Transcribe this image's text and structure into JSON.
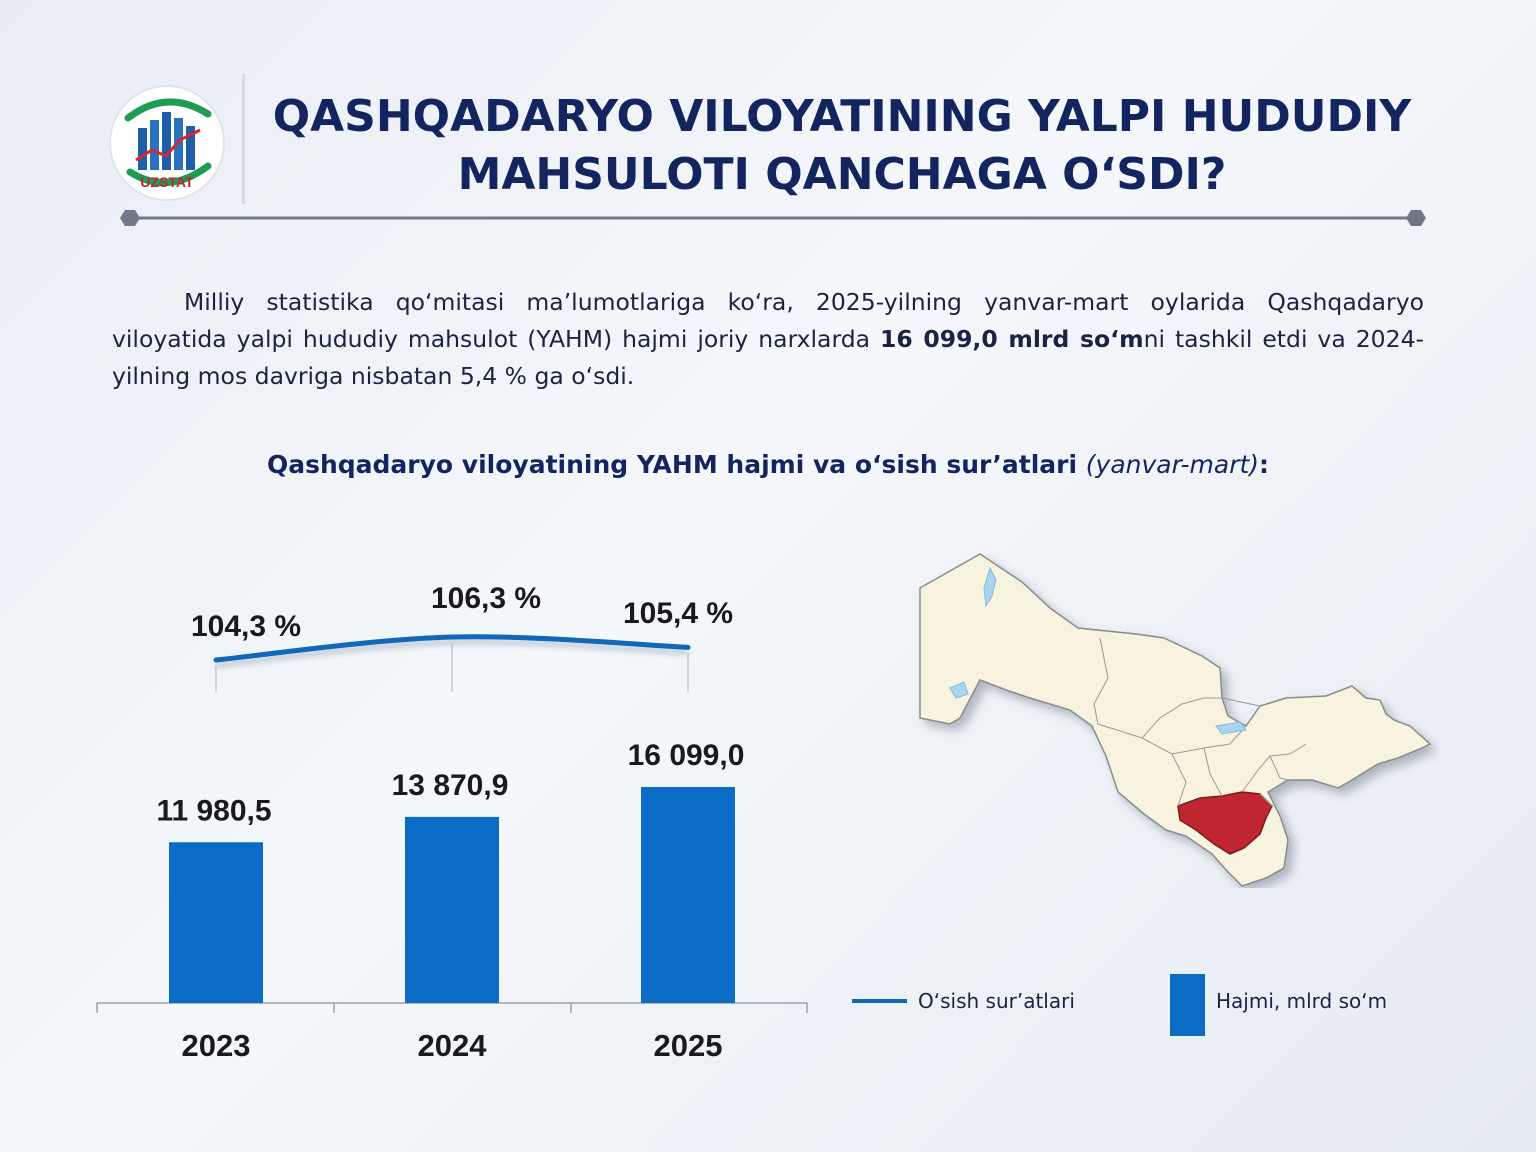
{
  "header": {
    "logo_text": "UZSTAT",
    "title_line1": "QASHQADARYO VILOYATINING YALPI HUDUDIY",
    "title_line2": "MAHSULOTI QANCHAGA O‘SDI?"
  },
  "intro": {
    "part1": "Milliy statistika qo‘mitasi ma’lumotlariga ko‘ra, 2025-yilning yanvar-mart oylarida Qashqadaryo viloyatida yalpi hududiy mahsulot (YAHM) hajmi joriy narxlarda ",
    "highlight": "16 099,0 mlrd so‘m",
    "part2": "ni tashkil etdi va 2024-yilning mos davriga nisbatan 5,4 % ga o‘sdi."
  },
  "chart_title": {
    "main": "Qashqadaryo viloyatining YAHM hajmi va o‘sish sur’atlari ",
    "note": "(yanvar-mart)",
    "suffix": ":"
  },
  "colors": {
    "bar": "#0a6cc4",
    "line": "#1268b8",
    "title": "#14245e",
    "region_highlight": "#c0262f",
    "map_fill": "#f7f3de"
  },
  "chart_data": {
    "type": "bar",
    "categories": [
      "2023",
      "2024",
      "2025"
    ],
    "series": [
      {
        "name": "Hajmi, mlrd so‘m",
        "type": "bar",
        "values": [
          11980.5,
          13870.9,
          16099.0
        ],
        "labels": [
          "11 980,5",
          "13 870,9",
          "16 099,0"
        ]
      },
      {
        "name": "O‘sish sur’atlari",
        "type": "line",
        "values": [
          104.3,
          106.3,
          105.4
        ],
        "labels": [
          "104,3 %",
          "106,3 %",
          "105,4 %"
        ]
      }
    ],
    "legend": {
      "position": "bottom-right"
    }
  },
  "legend": {
    "line_label": "O‘sish sur’atlari",
    "bar_label": "Hajmi, mlrd so‘m"
  },
  "map": {
    "highlighted_region": "Qashqadaryo"
  }
}
